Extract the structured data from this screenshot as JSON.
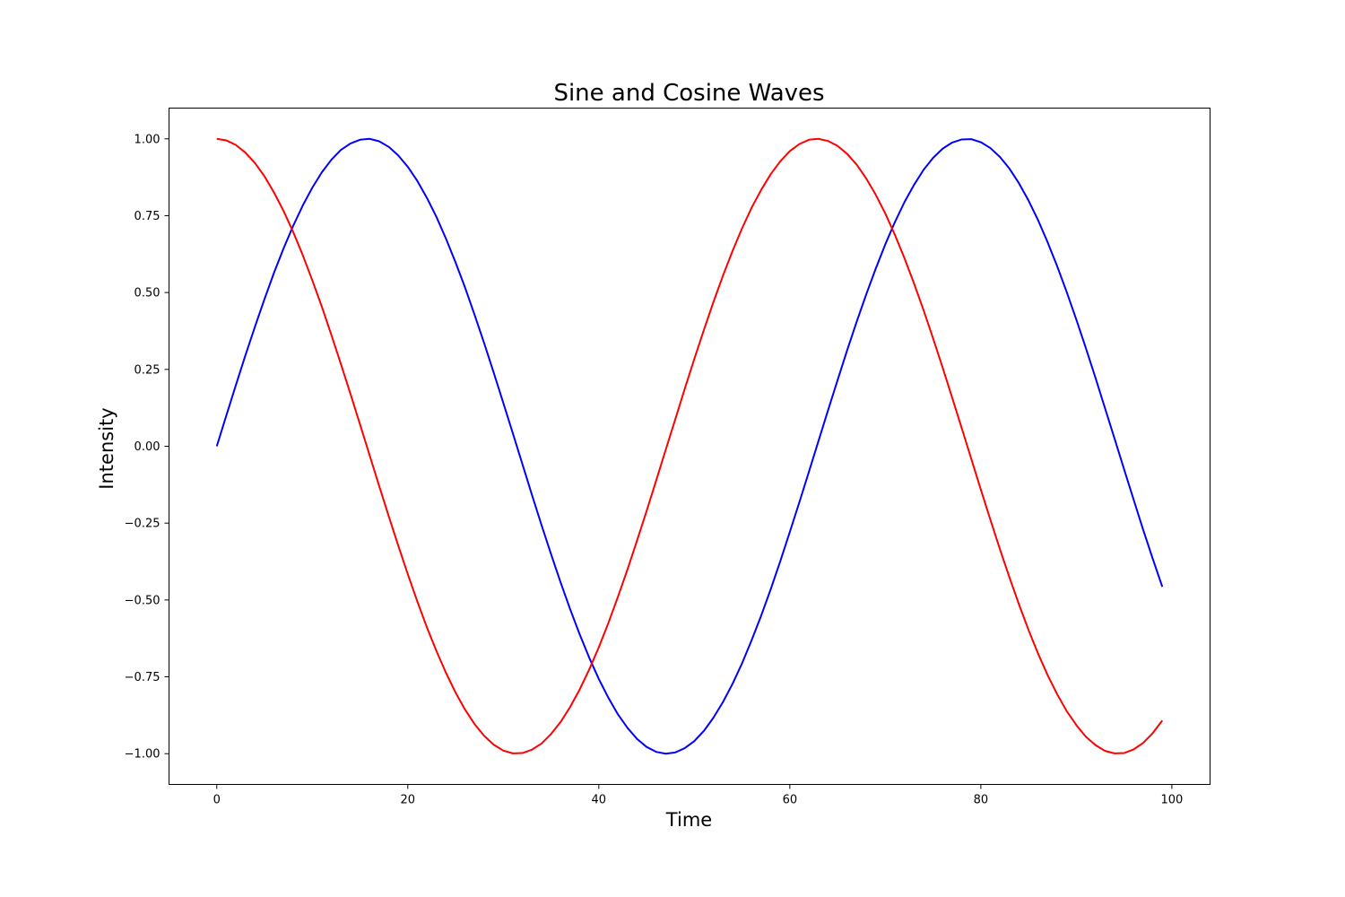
{
  "chart_data": {
    "type": "line",
    "title": "Sine and Cosine Waves",
    "xlabel": "Time",
    "ylabel": "Intensity",
    "xlim": [
      -5,
      104
    ],
    "ylim": [
      -1.1,
      1.1
    ],
    "xticks": [
      0,
      20,
      40,
      60,
      80,
      100
    ],
    "xtick_labels": [
      "0",
      "20",
      "40",
      "60",
      "80",
      "100"
    ],
    "yticks": [
      -1.0,
      -0.75,
      -0.5,
      -0.25,
      0.0,
      0.25,
      0.5,
      0.75,
      1.0
    ],
    "ytick_labels": [
      "−1.00",
      "−0.75",
      "−0.50",
      "−0.25",
      "0.00",
      "0.25",
      "0.50",
      "0.75",
      "1.00"
    ],
    "grid": false,
    "legend": false,
    "x": [
      0,
      1,
      2,
      3,
      4,
      5,
      6,
      7,
      8,
      9,
      10,
      11,
      12,
      13,
      14,
      15,
      16,
      17,
      18,
      19,
      20,
      21,
      22,
      23,
      24,
      25,
      26,
      27,
      28,
      29,
      30,
      31,
      32,
      33,
      34,
      35,
      36,
      37,
      38,
      39,
      40,
      41,
      42,
      43,
      44,
      45,
      46,
      47,
      48,
      49,
      50,
      51,
      52,
      53,
      54,
      55,
      56,
      57,
      58,
      59,
      60,
      61,
      62,
      63,
      64,
      65,
      66,
      67,
      68,
      69,
      70,
      71,
      72,
      73,
      74,
      75,
      76,
      77,
      78,
      79,
      80,
      81,
      82,
      83,
      84,
      85,
      86,
      87,
      88,
      89,
      90,
      91,
      92,
      93,
      94,
      95,
      96,
      97,
      98,
      99
    ],
    "series": [
      {
        "color": "#0000ff",
        "values": [
          0.0,
          0.1,
          0.199,
          0.296,
          0.389,
          0.479,
          0.565,
          0.644,
          0.717,
          0.783,
          0.841,
          0.891,
          0.932,
          0.964,
          0.985,
          0.997,
          1.0,
          0.992,
          0.974,
          0.946,
          0.909,
          0.863,
          0.808,
          0.746,
          0.675,
          0.598,
          0.516,
          0.427,
          0.335,
          0.239,
          0.141,
          0.042,
          -0.058,
          -0.158,
          -0.256,
          -0.351,
          -0.443,
          -0.53,
          -0.612,
          -0.688,
          -0.757,
          -0.818,
          -0.872,
          -0.916,
          -0.952,
          -0.978,
          -0.994,
          -1.0,
          -0.996,
          -0.982,
          -0.959,
          -0.926,
          -0.883,
          -0.832,
          -0.773,
          -0.706,
          -0.631,
          -0.551,
          -0.465,
          -0.374,
          -0.279,
          -0.182,
          -0.083,
          0.017,
          0.117,
          0.215,
          0.312,
          0.405,
          0.494,
          0.578,
          0.657,
          0.729,
          0.794,
          0.85,
          0.899,
          0.938,
          0.968,
          0.988,
          0.998,
          0.999,
          0.989,
          0.97,
          0.941,
          0.903,
          0.855,
          0.799,
          0.735,
          0.663,
          0.585,
          0.501,
          0.412,
          0.319,
          0.223,
          0.124,
          0.025,
          -0.075,
          -0.174,
          -0.272,
          -0.366,
          -0.457
        ]
      },
      {
        "color": "#ff0000",
        "values": [
          1.0,
          0.995,
          0.98,
          0.955,
          0.921,
          0.878,
          0.825,
          0.765,
          0.697,
          0.622,
          0.54,
          0.454,
          0.362,
          0.267,
          0.17,
          0.071,
          -0.029,
          -0.129,
          -0.227,
          -0.323,
          -0.416,
          -0.505,
          -0.589,
          -0.666,
          -0.737,
          -0.801,
          -0.857,
          -0.904,
          -0.942,
          -0.971,
          -0.99,
          -0.999,
          -0.998,
          -0.987,
          -0.967,
          -0.936,
          -0.897,
          -0.848,
          -0.791,
          -0.726,
          -0.654,
          -0.575,
          -0.49,
          -0.401,
          -0.307,
          -0.211,
          -0.112,
          -0.012,
          0.087,
          0.187,
          0.284,
          0.378,
          0.469,
          0.555,
          0.635,
          0.709,
          0.776,
          0.834,
          0.885,
          0.927,
          0.96,
          0.983,
          0.997,
          1.0,
          0.993,
          0.977,
          0.951,
          0.916,
          0.871,
          0.818,
          0.757,
          0.688,
          0.612,
          0.53,
          0.443,
          0.351,
          0.256,
          0.158,
          0.059,
          -0.041,
          -0.141,
          -0.239,
          -0.335,
          -0.427,
          -0.515,
          -0.598,
          -0.675,
          -0.745,
          -0.807,
          -0.862,
          -0.907,
          -0.945,
          -0.972,
          -0.991,
          -0.999,
          -0.998,
          -0.986,
          -0.965,
          -0.933,
          -0.892
        ]
      }
    ]
  }
}
